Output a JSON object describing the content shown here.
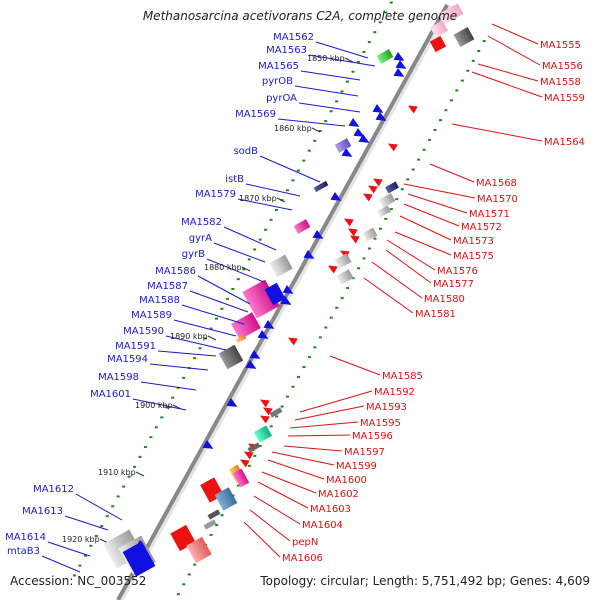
{
  "title": "Methanosarcina acetivorans C2A, complete genome",
  "footer": {
    "accession": "Accession: NC_003552",
    "summary": "Topology: circular; Length: 5,751,492 bp; Genes: 4,609"
  },
  "colors": {
    "left_label": "#1a1acc",
    "right_label": "#dd1111",
    "backbone": "#888888",
    "tick": "#1a8a1a"
  },
  "scale_labels": [
    "1850 kbp",
    "1860 kbp",
    "1870 kbp",
    "1880 kbp",
    "1890 kbp",
    "1900 kbp",
    "1910 kbp",
    "1920 kbp"
  ],
  "left_labels": [
    "MA1562",
    "MA1563",
    "MA1565",
    "pyrOB",
    "pyrOA",
    "MA1569",
    "sodB",
    "istB",
    "MA1579",
    "MA1582",
    "gyrA",
    "gyrB",
    "MA1586",
    "MA1587",
    "MA1588",
    "MA1589",
    "MA1590",
    "MA1591",
    "MA1594",
    "MA1598",
    "MA1601",
    "MA1612",
    "MA1613",
    "MA1614",
    "mtaB3"
  ],
  "right_labels": [
    "MA1555",
    "MA1556",
    "MA1558",
    "MA1559",
    "MA1564",
    "MA1568",
    "MA1570",
    "MA1571",
    "MA1572",
    "MA1573",
    "MA1575",
    "MA1576",
    "MA1577",
    "MA1580",
    "MA1581",
    "MA1585",
    "MA1592",
    "MA1593",
    "MA1595",
    "MA1596",
    "MA1597",
    "MA1599",
    "MA1600",
    "MA1602",
    "MA1603",
    "MA1604",
    "pepN",
    "MA1606"
  ]
}
